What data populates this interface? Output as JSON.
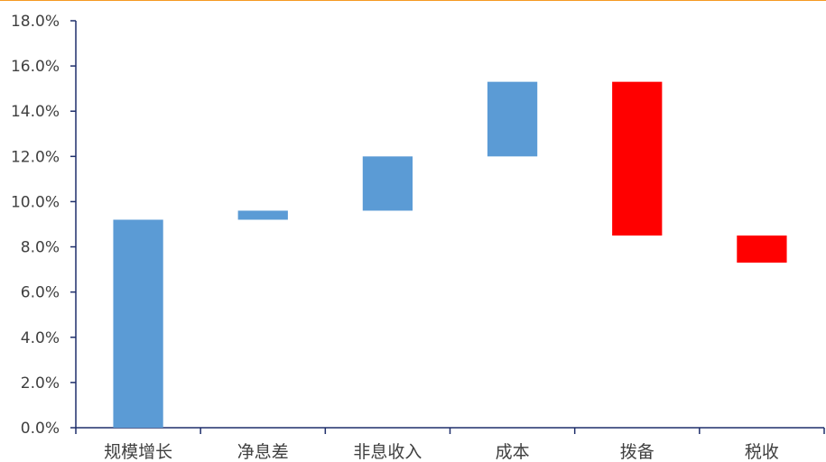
{
  "accent_color": "#f59a23",
  "chart_data": {
    "type": "bar",
    "subtype": "waterfall",
    "title": "",
    "xlabel": "",
    "ylabel": "",
    "ylim": [
      0,
      18
    ],
    "y_ticks": [
      "0.0%",
      "2.0%",
      "4.0%",
      "6.0%",
      "8.0%",
      "10.0%",
      "12.0%",
      "14.0%",
      "16.0%",
      "18.0%"
    ],
    "y_tick_values": [
      0,
      2,
      4,
      6,
      8,
      10,
      12,
      14,
      16,
      18
    ],
    "categories": [
      "规模增长",
      "净息差",
      "非息收入",
      "成本",
      "拨备",
      "税收"
    ],
    "bars": [
      {
        "start": 0.0,
        "end": 9.2,
        "color": "#5b9bd5"
      },
      {
        "start": 9.2,
        "end": 9.6,
        "color": "#5b9bd5"
      },
      {
        "start": 9.6,
        "end": 12.0,
        "color": "#5b9bd5"
      },
      {
        "start": 12.0,
        "end": 15.3,
        "color": "#5b9bd5"
      },
      {
        "start": 15.3,
        "end": 8.5,
        "color": "#ff0000"
      },
      {
        "start": 8.5,
        "end": 7.3,
        "color": "#ff0000"
      }
    ],
    "grid": false,
    "legend": "none"
  }
}
